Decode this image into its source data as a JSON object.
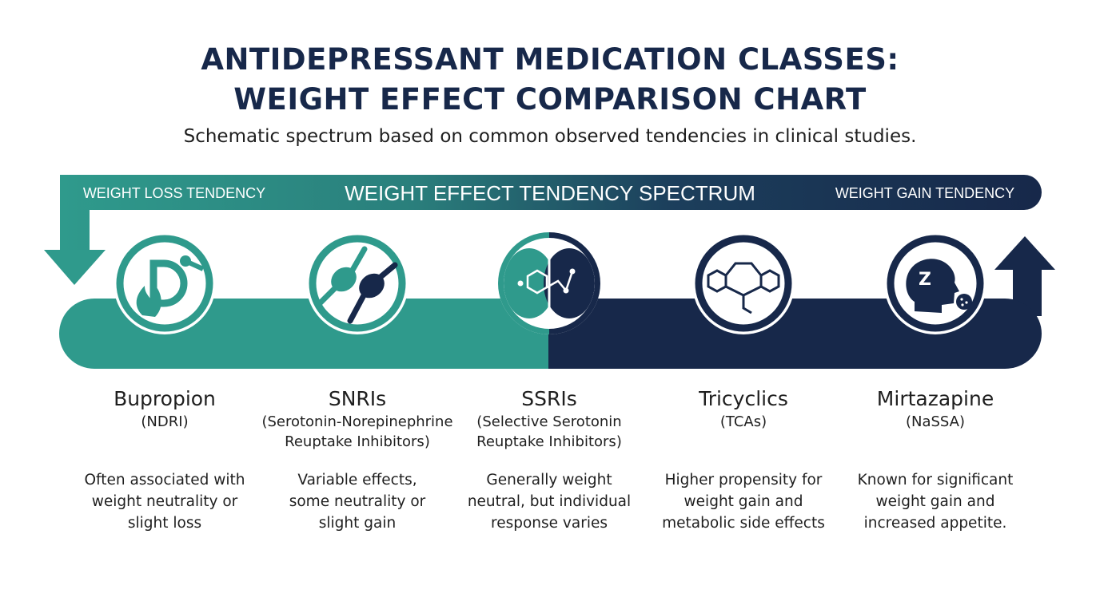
{
  "title_line1": "ANTIDEPRESSANT MEDICATION CLASSES:",
  "title_line2": "WEIGHT EFFECT COMPARISON CHART",
  "subtitle": "Schematic spectrum based on common observed tendencies in clinical studies.",
  "spectrum": {
    "center_label": "WEIGHT EFFECT TENDENCY SPECTRUM",
    "left_label": "WEIGHT LOSS TENDENCY",
    "right_label": "WEIGHT GAIN TENDENCY"
  },
  "colors": {
    "teal": "#2f9a8c",
    "navy": "#17284a",
    "text": "#1f1f1f"
  },
  "classes": [
    {
      "name": "Bupropion",
      "sub_lines": [
        "(NDRI)"
      ],
      "desc_lines": [
        "Often associated with",
        "weight neutrality or",
        "slight loss"
      ],
      "icon": "flame-dopamine-icon"
    },
    {
      "name": "SNRIs",
      "sub_lines": [
        "(Serotonin-Norepinephrine",
        "Reuptake Inhibitors)"
      ],
      "desc_lines": [
        "Variable effects,",
        "some neutrality or",
        "slight gain"
      ],
      "icon": "dual-receptor-icon"
    },
    {
      "name": "SSRIs",
      "sub_lines": [
        "(Selective Serotonin",
        "Reuptake Inhibitors)"
      ],
      "desc_lines": [
        "Generally weight",
        "neutral, but individual",
        "response varies"
      ],
      "icon": "brain-molecule-icon"
    },
    {
      "name": "Tricyclics",
      "sub_lines": [
        "(TCAs)"
      ],
      "desc_lines": [
        "Higher propensity for",
        "weight gain and",
        "metabolic side effects"
      ],
      "icon": "tricyclic-molecule-icon"
    },
    {
      "name": "Mirtazapine",
      "sub_lines": [
        "(NaSSA)"
      ],
      "desc_lines": [
        "Known for significant",
        "weight gain and",
        "increased appetite."
      ],
      "icon": "sleep-appetite-head-icon"
    }
  ]
}
